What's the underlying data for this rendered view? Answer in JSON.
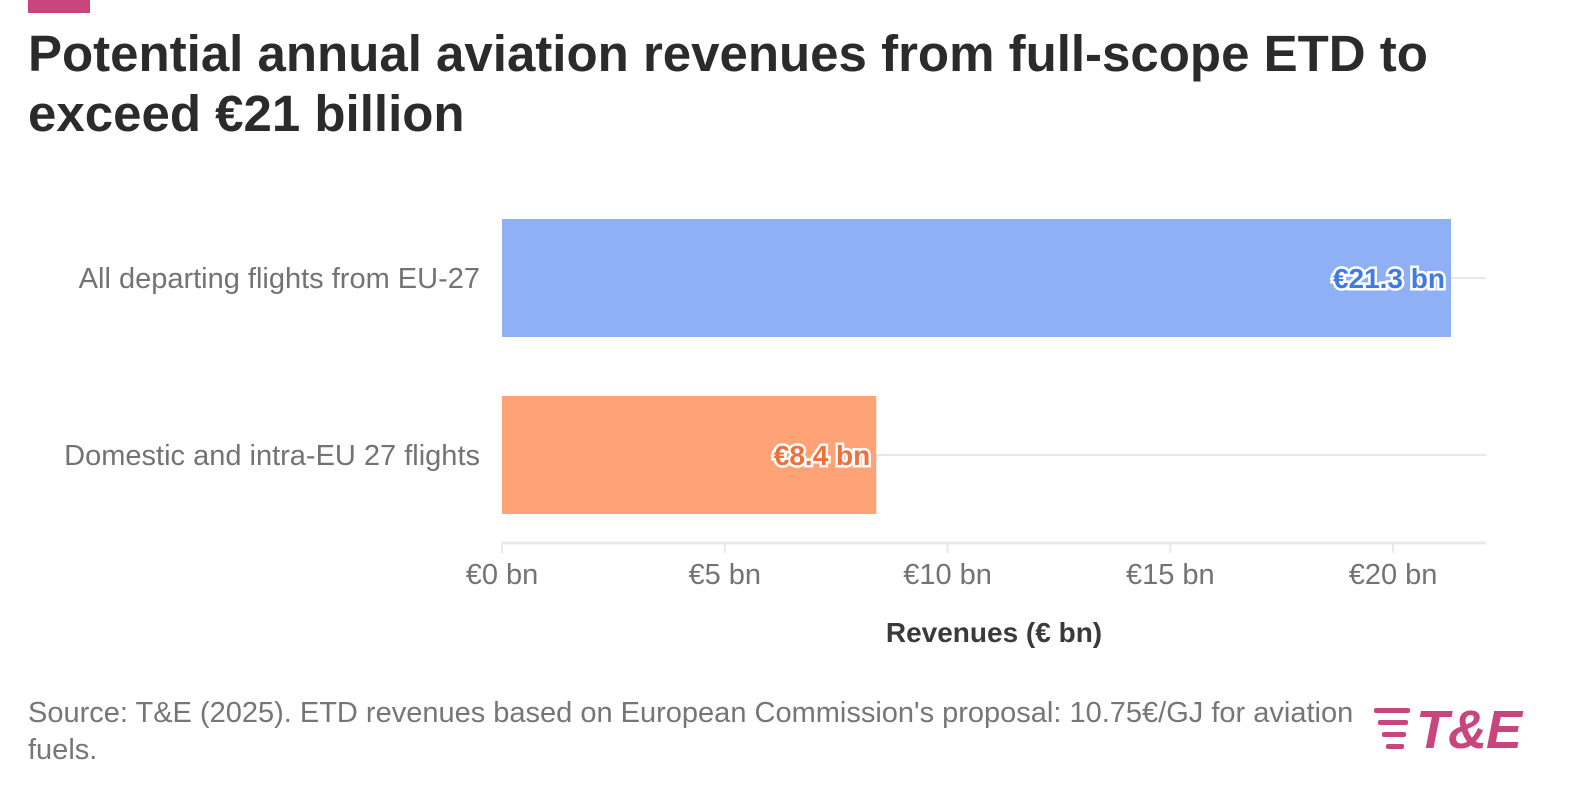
{
  "title": "Potential annual aviation revenues from full-scope ETD to exceed €21 billion",
  "source": "Source: T&E (2025). ETD revenues based on European Commission's proposal: 10.75€/GJ for aviation fuels.",
  "logo_text": "T&E",
  "colors": {
    "accent": "#c9457d",
    "title": "#2b2b2b",
    "label": "#737373",
    "grid": "#e8e8e8",
    "bar_blue": "#8fb0f4",
    "bar_orange": "#ffa276",
    "label_blue": "#3f7ae6",
    "label_orange": "#f26f3a"
  },
  "chart_data": {
    "type": "bar",
    "orientation": "horizontal",
    "categories": [
      "All departing flights from EU-27",
      "Domestic and intra-EU 27 flights"
    ],
    "values": [
      21.3,
      8.4
    ],
    "data_labels": [
      "€21.3 bn",
      "€8.4 bn"
    ],
    "bar_colors": [
      "#8fb0f4",
      "#ffa276"
    ],
    "xlabel": "Revenues (€ bn)",
    "ylabel": "",
    "xlim": [
      0,
      22
    ],
    "xticks": [
      0,
      5,
      10,
      15,
      20
    ],
    "xtick_labels": [
      "€0 bn",
      "€5 bn",
      "€10 bn",
      "€15 bn",
      "€20 bn"
    ],
    "grid": true,
    "legend": false
  }
}
